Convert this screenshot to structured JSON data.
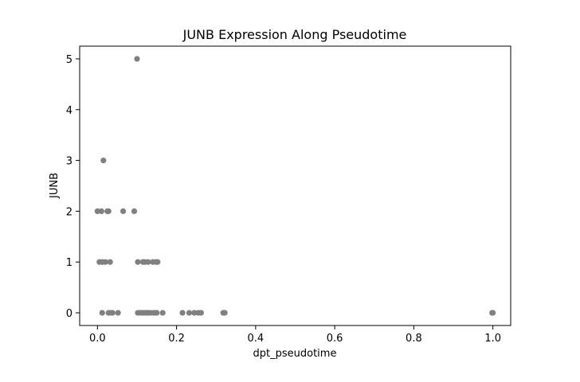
{
  "chart_data": {
    "type": "scatter",
    "title": "JUNB Expression Along Pseudotime",
    "xlabel": "dpt_pseudotime",
    "ylabel": "JUNB",
    "xlim": [
      -0.045,
      1.045
    ],
    "ylim": [
      -0.25,
      5.25
    ],
    "xticks": [
      0.0,
      0.2,
      0.4,
      0.6,
      0.8,
      1.0
    ],
    "xtick_labels": [
      "0.0",
      "0.2",
      "0.4",
      "0.6",
      "0.8",
      "1.0"
    ],
    "yticks": [
      0,
      1,
      2,
      3,
      4,
      5
    ],
    "ytick_labels": [
      "0",
      "1",
      "2",
      "3",
      "4",
      "5"
    ],
    "grid": false,
    "marker_color": "#808080",
    "points": [
      {
        "x": 0.1,
        "y": 5
      },
      {
        "x": 0.015,
        "y": 3
      },
      {
        "x": 0.0,
        "y": 2
      },
      {
        "x": 0.01,
        "y": 2
      },
      {
        "x": 0.025,
        "y": 2
      },
      {
        "x": 0.028,
        "y": 2
      },
      {
        "x": 0.065,
        "y": 2
      },
      {
        "x": 0.093,
        "y": 2
      },
      {
        "x": 0.005,
        "y": 1
      },
      {
        "x": 0.012,
        "y": 1
      },
      {
        "x": 0.02,
        "y": 1
      },
      {
        "x": 0.032,
        "y": 1
      },
      {
        "x": 0.102,
        "y": 1
      },
      {
        "x": 0.115,
        "y": 1
      },
      {
        "x": 0.12,
        "y": 1
      },
      {
        "x": 0.128,
        "y": 1
      },
      {
        "x": 0.14,
        "y": 1
      },
      {
        "x": 0.148,
        "y": 1
      },
      {
        "x": 0.152,
        "y": 1
      },
      {
        "x": 0.012,
        "y": 0
      },
      {
        "x": 0.028,
        "y": 0
      },
      {
        "x": 0.032,
        "y": 0
      },
      {
        "x": 0.038,
        "y": 0
      },
      {
        "x": 0.052,
        "y": 0
      },
      {
        "x": 0.102,
        "y": 0
      },
      {
        "x": 0.108,
        "y": 0
      },
      {
        "x": 0.112,
        "y": 0
      },
      {
        "x": 0.118,
        "y": 0
      },
      {
        "x": 0.122,
        "y": 0
      },
      {
        "x": 0.126,
        "y": 0
      },
      {
        "x": 0.13,
        "y": 0
      },
      {
        "x": 0.134,
        "y": 0
      },
      {
        "x": 0.142,
        "y": 0
      },
      {
        "x": 0.146,
        "y": 0
      },
      {
        "x": 0.15,
        "y": 0
      },
      {
        "x": 0.165,
        "y": 0
      },
      {
        "x": 0.215,
        "y": 0
      },
      {
        "x": 0.232,
        "y": 0
      },
      {
        "x": 0.245,
        "y": 0
      },
      {
        "x": 0.255,
        "y": 0
      },
      {
        "x": 0.262,
        "y": 0
      },
      {
        "x": 0.318,
        "y": 0
      },
      {
        "x": 0.32,
        "y": 0
      },
      {
        "x": 0.322,
        "y": 0
      },
      {
        "x": 0.998,
        "y": 0
      },
      {
        "x": 1.0,
        "y": 0
      }
    ]
  }
}
